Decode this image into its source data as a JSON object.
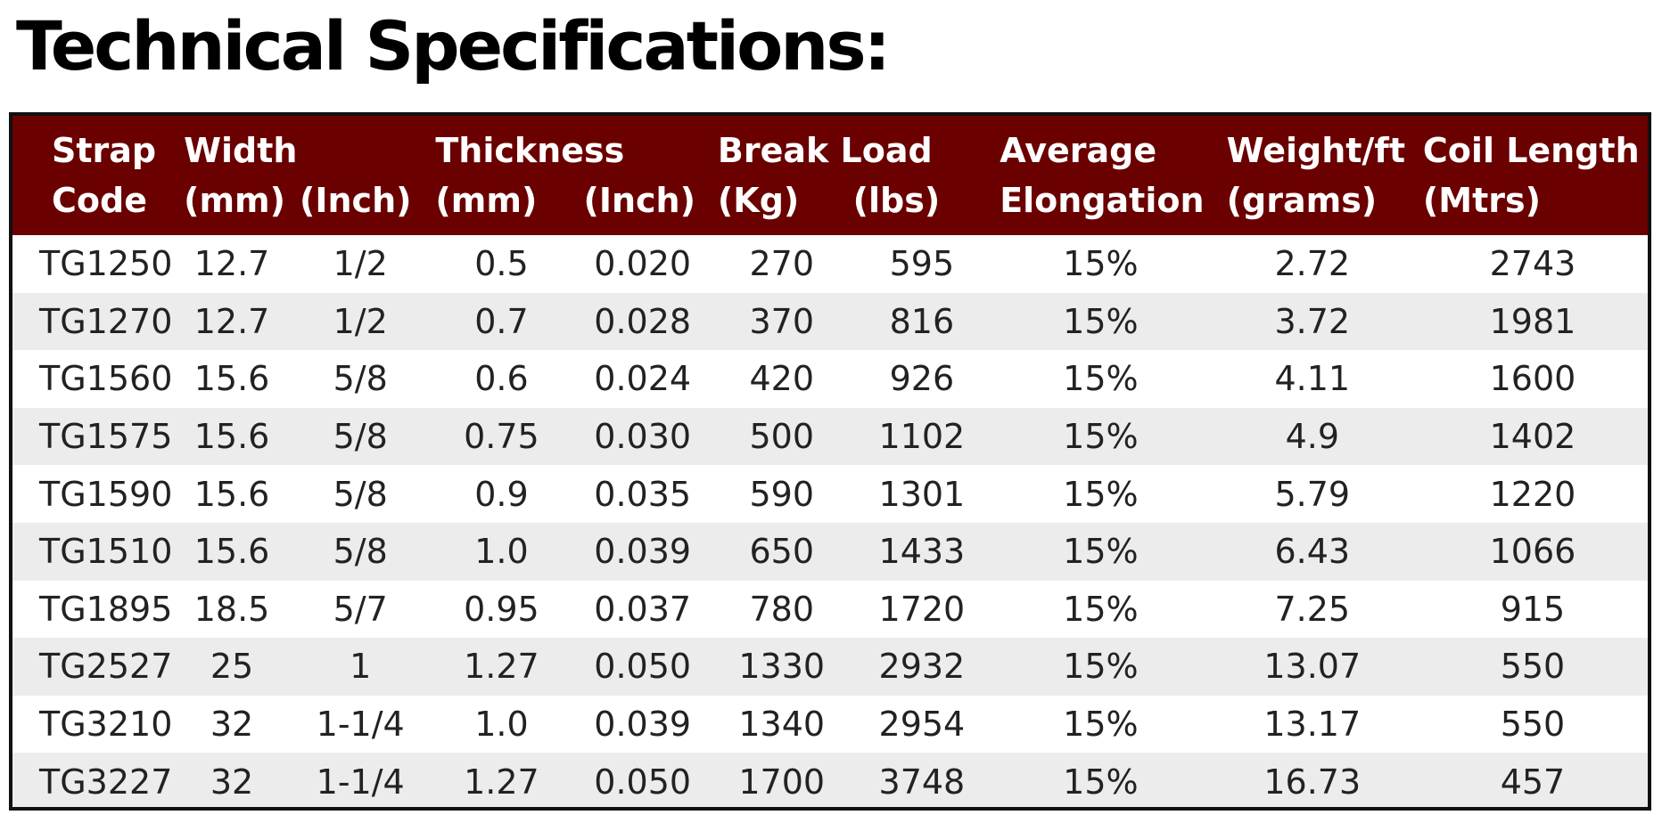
{
  "page": {
    "title": "Technical Specifications:",
    "header_color": "#6a0000",
    "stripe_color": "#ececec"
  },
  "table": {
    "header": {
      "strap_code": [
        "Strap",
        "Code"
      ],
      "width_mm": [
        "Width",
        "(mm)"
      ],
      "width_inch": [
        "",
        "(Inch)"
      ],
      "thickness_mm": [
        "Thickness",
        "(mm)"
      ],
      "thickness_inch": [
        "",
        "(Inch)"
      ],
      "break_kg": [
        "Break Load",
        "(Kg)"
      ],
      "break_lbs": [
        "",
        "(lbs)"
      ],
      "elongation": [
        "Average",
        "Elongation"
      ],
      "weight": [
        "Weight/ft",
        "(grams)"
      ],
      "coil": [
        "Coil Length",
        "(Mtrs)"
      ]
    },
    "rows": [
      [
        "TG1250",
        "12.7",
        "1/2",
        "0.5",
        "0.020",
        "270",
        "595",
        "15%",
        "2.72",
        "2743"
      ],
      [
        "TG1270",
        "12.7",
        "1/2",
        "0.7",
        "0.028",
        "370",
        "816",
        "15%",
        "3.72",
        "1981"
      ],
      [
        "TG1560",
        "15.6",
        "5/8",
        "0.6",
        "0.024",
        "420",
        "926",
        "15%",
        "4.11",
        "1600"
      ],
      [
        "TG1575",
        "15.6",
        "5/8",
        "0.75",
        "0.030",
        "500",
        "1102",
        "15%",
        "4.9",
        "1402"
      ],
      [
        "TG1590",
        "15.6",
        "5/8",
        "0.9",
        "0.035",
        "590",
        "1301",
        "15%",
        "5.79",
        "1220"
      ],
      [
        "TG1510",
        "15.6",
        "5/8",
        "1.0",
        "0.039",
        "650",
        "1433",
        "15%",
        "6.43",
        "1066"
      ],
      [
        "TG1895",
        "18.5",
        "5/7",
        "0.95",
        "0.037",
        "780",
        "1720",
        "15%",
        "7.25",
        "915"
      ],
      [
        "TG2527",
        "25",
        "1",
        "1.27",
        "0.050",
        "1330",
        "2932",
        "15%",
        "13.07",
        "550"
      ],
      [
        "TG3210",
        "32",
        "1-1/4",
        "1.0",
        "0.039",
        "1340",
        "2954",
        "15%",
        "13.17",
        "550"
      ],
      [
        "TG3227",
        "32",
        "1-1/4",
        "1.27",
        "0.050",
        "1700",
        "3748",
        "15%",
        "16.73",
        "457"
      ]
    ]
  }
}
